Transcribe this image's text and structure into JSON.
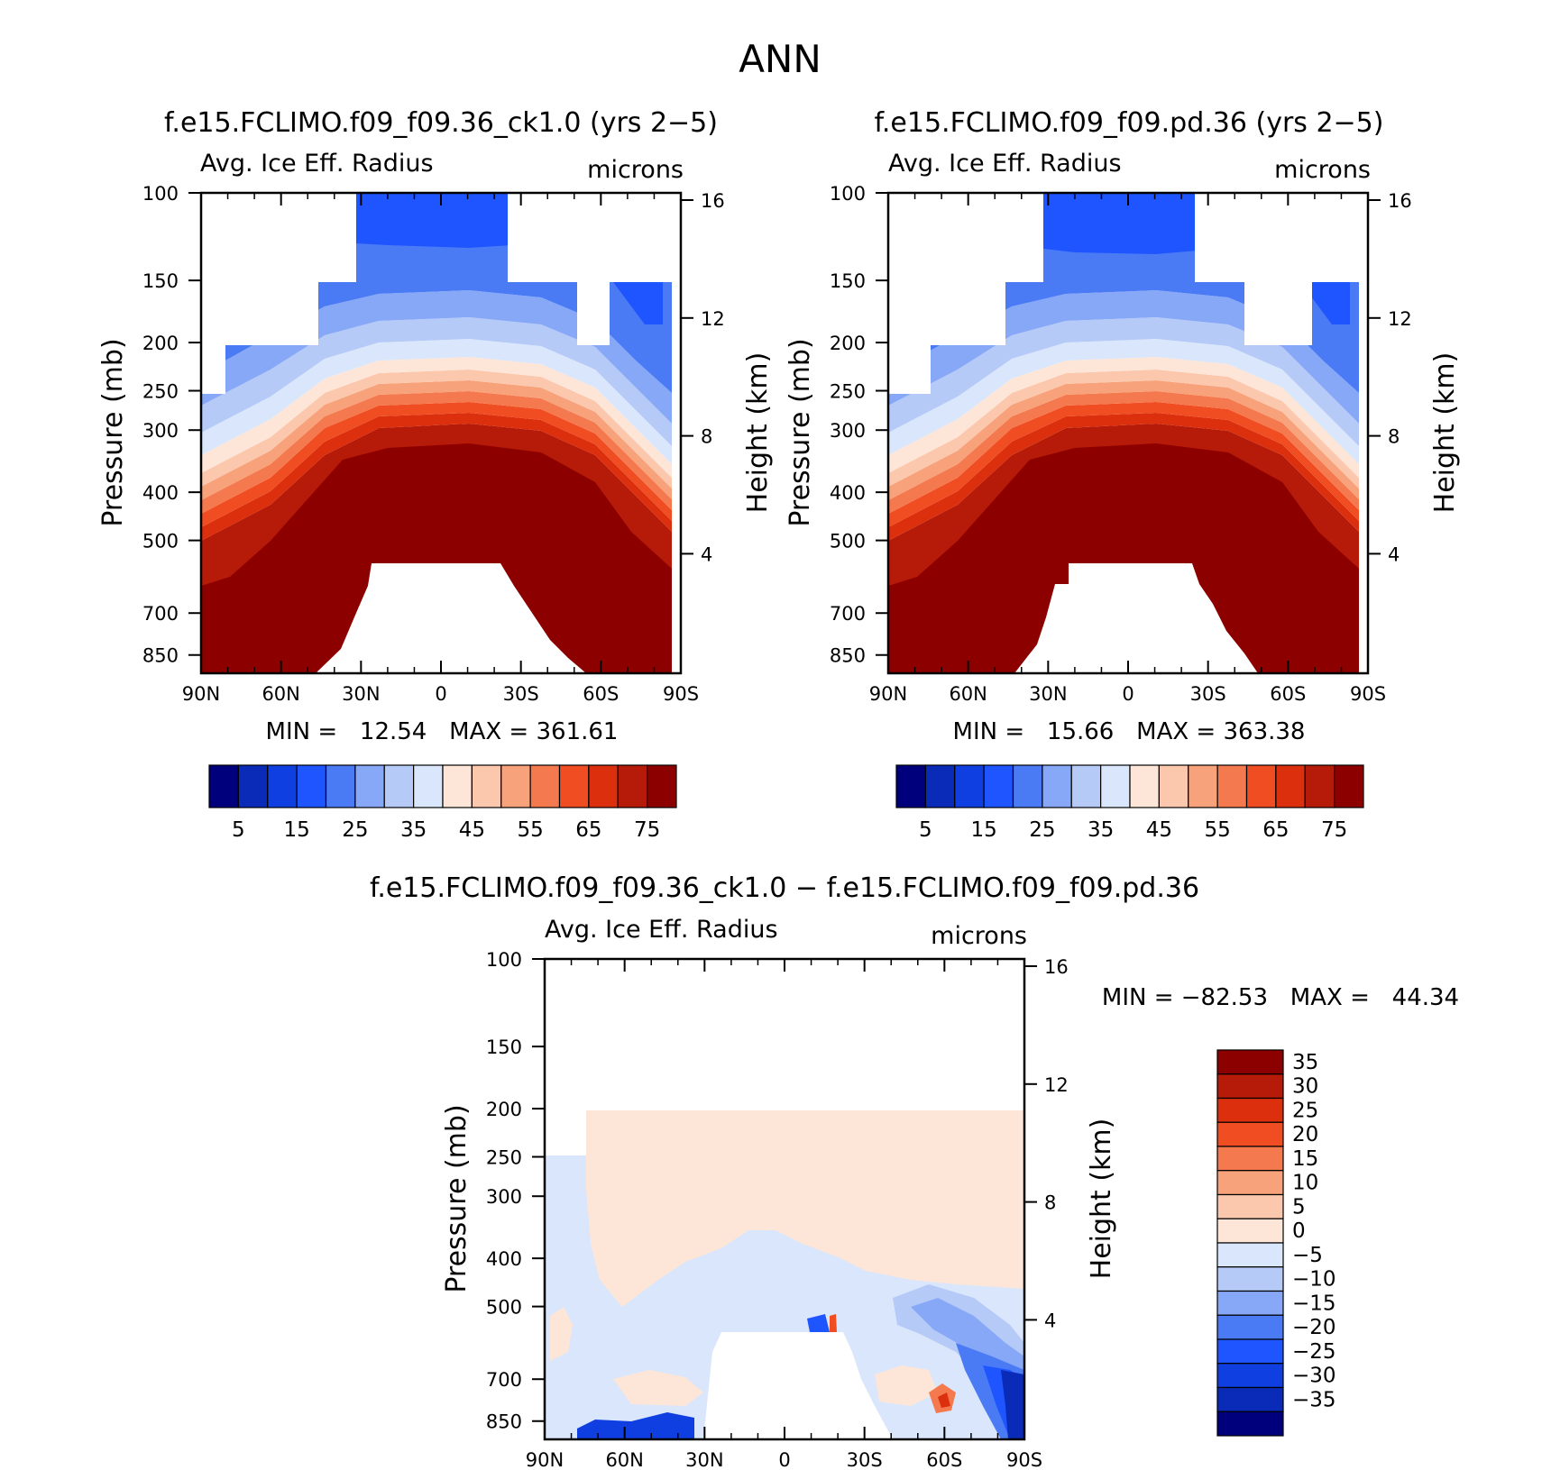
{
  "page": {
    "title": "ANN"
  },
  "chart_data": [
    {
      "type": "heatmap",
      "panel": "model_case",
      "title": "f.e15.FCLIMO.f09_f09.36_ck1.0 (yrs 2−5)",
      "left_label": "Avg. Ice Eff. Radius",
      "right_label": "microns",
      "ylabel": "Pressure (mb)",
      "ylabel_right": "Height (km)",
      "x_ticks": [
        "90N",
        "60N",
        "30N",
        "0",
        "30S",
        "60S",
        "90S"
      ],
      "y_ticks": [
        "100",
        "150",
        "200",
        "250",
        "300",
        "400",
        "500",
        "700",
        "850"
      ],
      "y_ticks_right": [
        "16",
        "12",
        "8",
        "4"
      ],
      "stats": "MIN =   12.54   MAX = 361.61",
      "colorbar_ticks": [
        "5",
        "15",
        "25",
        "35",
        "45",
        "55",
        "65",
        "75"
      ]
    },
    {
      "type": "heatmap",
      "panel": "control_case",
      "title": "f.e15.FCLIMO.f09_f09.pd.36 (yrs 2−5)",
      "left_label": "Avg. Ice Eff. Radius",
      "right_label": "microns",
      "ylabel": "Pressure (mb)",
      "ylabel_right": "Height (km)",
      "x_ticks": [
        "90N",
        "60N",
        "30N",
        "0",
        "30S",
        "60S",
        "90S"
      ],
      "y_ticks": [
        "100",
        "150",
        "200",
        "250",
        "300",
        "400",
        "500",
        "700",
        "850"
      ],
      "y_ticks_right": [
        "16",
        "12",
        "8",
        "4"
      ],
      "stats": "MIN =   15.66   MAX = 363.38",
      "colorbar_ticks": [
        "5",
        "15",
        "25",
        "35",
        "45",
        "55",
        "65",
        "75"
      ]
    },
    {
      "type": "heatmap",
      "panel": "difference",
      "title": "f.e15.FCLIMO.f09_f09.36_ck1.0 − f.e15.FCLIMO.f09_f09.pd.36",
      "left_label": "Avg. Ice Eff. Radius",
      "right_label": "microns",
      "ylabel": "Pressure (mb)",
      "ylabel_right": "Height (km)",
      "x_ticks": [
        "90N",
        "60N",
        "30N",
        "0",
        "30S",
        "60S",
        "90S"
      ],
      "y_ticks": [
        "100",
        "150",
        "200",
        "250",
        "300",
        "400",
        "500",
        "700",
        "850"
      ],
      "y_ticks_right": [
        "16",
        "12",
        "8",
        "4"
      ],
      "stats": "MIN = −82.53   MAX =   44.34",
      "colorbar_ticks": [
        "35",
        "30",
        "25",
        "20",
        "15",
        "10",
        "5",
        "0",
        "−5",
        "−10",
        "−15",
        "−20",
        "−25",
        "−30",
        "−35"
      ]
    }
  ],
  "colors": {
    "absolute": [
      "#00007d",
      "#0a2ab8",
      "#0f3fe0",
      "#1f55ff",
      "#4a7bf5",
      "#86a8f7",
      "#b6caf8",
      "#d9e6fb",
      "#fde6d8",
      "#fbc8ad",
      "#f7a27a",
      "#f5794e",
      "#f04e22",
      "#dc2f0d",
      "#b61a08",
      "#8c0000"
    ],
    "difference": [
      "#8c0000",
      "#b61a08",
      "#dc2f0d",
      "#f04e22",
      "#f5794e",
      "#f7a27a",
      "#fbc8ad",
      "#fde6d8",
      "#d9e6fb",
      "#b6caf8",
      "#86a8f7",
      "#4a7bf5",
      "#1f55ff",
      "#0f3fe0",
      "#0a2ab8",
      "#00007d"
    ]
  }
}
